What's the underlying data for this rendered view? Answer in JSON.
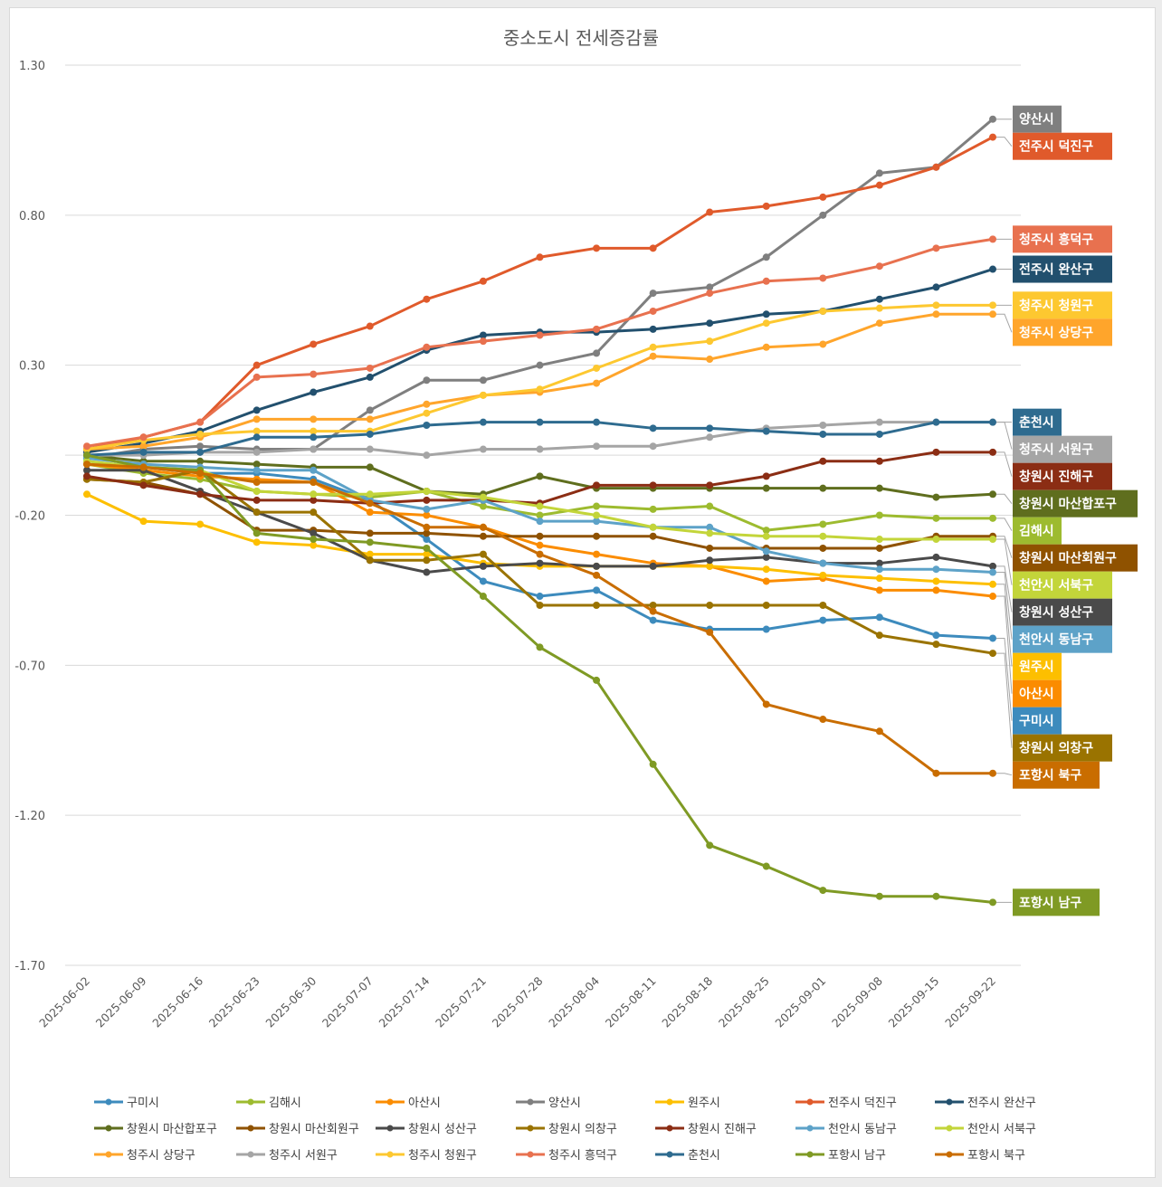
{
  "chart_data": {
    "type": "line",
    "title": "중소도시 전세증감률",
    "xlabel": "",
    "ylabel": "",
    "ylim": [
      -1.7,
      1.3
    ],
    "yticks": [
      "1.30",
      "0.80",
      "0.30",
      "-0.20",
      "-0.70",
      "-1.20",
      "-1.70"
    ],
    "ytick_values": [
      1.3,
      0.8,
      0.3,
      -0.2,
      -0.7,
      -1.2,
      -1.7
    ],
    "grid": true,
    "legend_position": "bottom",
    "categories": [
      "2025-06-02",
      "2025-06-09",
      "2025-06-16",
      "2025-06-23",
      "2025-06-30",
      "2025-07-07",
      "2025-07-14",
      "2025-07-21",
      "2025-07-28",
      "2025-08-04",
      "2025-08-11",
      "2025-08-18",
      "2025-08-25",
      "2025-09-01",
      "2025-09-08",
      "2025-09-15",
      "2025-09-22"
    ],
    "series": [
      {
        "name": "구미시",
        "color": "#3d8bbd",
        "values": [
          0.0,
          -0.04,
          -0.06,
          -0.06,
          -0.08,
          -0.15,
          -0.28,
          -0.42,
          -0.47,
          -0.45,
          -0.55,
          -0.58,
          -0.58,
          -0.55,
          -0.54,
          -0.6,
          -0.61
        ]
      },
      {
        "name": "김해시",
        "color": "#9dbb2f",
        "values": [
          -0.03,
          -0.06,
          -0.08,
          -0.12,
          -0.13,
          -0.14,
          -0.12,
          -0.17,
          -0.2,
          -0.17,
          -0.18,
          -0.17,
          -0.25,
          -0.23,
          -0.2,
          -0.21,
          -0.21
        ]
      },
      {
        "name": "아산시",
        "color": "#fb8c00",
        "values": [
          -0.03,
          -0.05,
          -0.07,
          -0.08,
          -0.09,
          -0.19,
          -0.2,
          -0.24,
          -0.3,
          -0.33,
          -0.36,
          -0.37,
          -0.42,
          -0.41,
          -0.45,
          -0.45,
          -0.47
        ]
      },
      {
        "name": "양산시",
        "color": "#7f7f7f",
        "values": [
          -0.01,
          0.02,
          0.03,
          0.02,
          0.02,
          0.15,
          0.25,
          0.25,
          0.3,
          0.34,
          0.54,
          0.56,
          0.66,
          0.8,
          0.94,
          0.96,
          1.12
        ]
      },
      {
        "name": "원주시",
        "color": "#fdbf00",
        "values": [
          -0.13,
          -0.22,
          -0.23,
          -0.29,
          -0.3,
          -0.33,
          -0.33,
          -0.36,
          -0.37,
          -0.37,
          -0.37,
          -0.37,
          -0.38,
          -0.4,
          -0.41,
          -0.42,
          -0.43
        ]
      },
      {
        "name": "전주시 덕진구",
        "color": "#e05a2b",
        "values": [
          0.02,
          0.06,
          0.11,
          0.3,
          0.37,
          0.43,
          0.52,
          0.58,
          0.66,
          0.69,
          0.69,
          0.81,
          0.83,
          0.86,
          0.9,
          0.96,
          1.06
        ]
      },
      {
        "name": "전주시 완산구",
        "color": "#22506e",
        "values": [
          0.01,
          0.04,
          0.08,
          0.15,
          0.21,
          0.26,
          0.35,
          0.4,
          0.41,
          0.41,
          0.42,
          0.44,
          0.47,
          0.48,
          0.52,
          0.56,
          0.62
        ]
      },
      {
        "name": "창원시 마산합포구",
        "color": "#5f6e1e",
        "values": [
          0.0,
          -0.02,
          -0.02,
          -0.03,
          -0.04,
          -0.04,
          -0.12,
          -0.13,
          -0.07,
          -0.11,
          -0.11,
          -0.11,
          -0.11,
          -0.11,
          -0.11,
          -0.14,
          -0.13
        ]
      },
      {
        "name": "창원시 마산회원구",
        "color": "#8f5200",
        "values": [
          -0.08,
          -0.09,
          -0.13,
          -0.25,
          -0.25,
          -0.26,
          -0.26,
          -0.27,
          -0.27,
          -0.27,
          -0.27,
          -0.31,
          -0.31,
          -0.31,
          -0.31,
          -0.27,
          -0.27
        ]
      },
      {
        "name": "창원시 성산구",
        "color": "#4a4a4a",
        "values": [
          -0.05,
          -0.05,
          -0.12,
          -0.19,
          -0.26,
          -0.35,
          -0.39,
          -0.37,
          -0.36,
          -0.37,
          -0.37,
          -0.35,
          -0.34,
          -0.36,
          -0.36,
          -0.34,
          -0.37
        ]
      },
      {
        "name": "창원시 의창구",
        "color": "#9a7300",
        "values": [
          -0.08,
          -0.09,
          -0.05,
          -0.19,
          -0.19,
          -0.35,
          -0.35,
          -0.33,
          -0.5,
          -0.5,
          -0.5,
          -0.5,
          -0.5,
          -0.5,
          -0.6,
          -0.63,
          -0.66
        ]
      },
      {
        "name": "창원시 진해구",
        "color": "#8b2d14",
        "values": [
          -0.07,
          -0.1,
          -0.13,
          -0.15,
          -0.15,
          -0.16,
          -0.15,
          -0.15,
          -0.16,
          -0.1,
          -0.1,
          -0.1,
          -0.07,
          -0.02,
          -0.02,
          0.01,
          0.01
        ]
      },
      {
        "name": "천안시 동남구",
        "color": "#5da2c8",
        "values": [
          -0.01,
          -0.03,
          -0.04,
          -0.05,
          -0.05,
          -0.15,
          -0.18,
          -0.15,
          -0.22,
          -0.22,
          -0.24,
          -0.24,
          -0.32,
          -0.36,
          -0.38,
          -0.38,
          -0.39
        ]
      },
      {
        "name": "천안시 서북구",
        "color": "#c3d53a",
        "values": [
          -0.02,
          -0.04,
          -0.05,
          -0.12,
          -0.13,
          -0.13,
          -0.12,
          -0.14,
          -0.17,
          -0.2,
          -0.24,
          -0.26,
          -0.27,
          -0.27,
          -0.28,
          -0.28,
          -0.28
        ]
      },
      {
        "name": "청주시 상당구",
        "color": "#ffa52b",
        "values": [
          0.02,
          0.03,
          0.06,
          0.12,
          0.12,
          0.12,
          0.17,
          0.2,
          0.21,
          0.24,
          0.33,
          0.32,
          0.36,
          0.37,
          0.44,
          0.47,
          0.47
        ]
      },
      {
        "name": "청주시 서원구",
        "color": "#a5a5a5",
        "values": [
          0.0,
          0.0,
          0.01,
          0.01,
          0.02,
          0.02,
          0.0,
          0.02,
          0.02,
          0.03,
          0.03,
          0.06,
          0.09,
          0.1,
          0.11,
          0.11,
          0.11
        ]
      },
      {
        "name": "청주시 청원구",
        "color": "#fdc830",
        "values": [
          0.02,
          0.05,
          0.07,
          0.08,
          0.08,
          0.08,
          0.14,
          0.2,
          0.22,
          0.29,
          0.36,
          0.38,
          0.44,
          0.48,
          0.49,
          0.5,
          0.5
        ]
      },
      {
        "name": "청주시 흥덕구",
        "color": "#e8714f",
        "values": [
          0.03,
          0.06,
          0.11,
          0.26,
          0.27,
          0.29,
          0.36,
          0.38,
          0.4,
          0.42,
          0.48,
          0.54,
          0.58,
          0.59,
          0.63,
          0.69,
          0.72
        ]
      },
      {
        "name": "춘천시",
        "color": "#2e6b8f",
        "values": [
          0.0,
          0.01,
          0.01,
          0.06,
          0.06,
          0.07,
          0.1,
          0.11,
          0.11,
          0.11,
          0.09,
          0.09,
          0.08,
          0.07,
          0.07,
          0.11,
          0.11
        ]
      },
      {
        "name": "포항시 남구",
        "color": "#7f9a24",
        "values": [
          0.0,
          -0.04,
          -0.05,
          -0.26,
          -0.28,
          -0.29,
          -0.31,
          -0.47,
          -0.64,
          -0.75,
          -1.03,
          -1.3,
          -1.37,
          -1.45,
          -1.47,
          -1.47,
          -1.49
        ]
      },
      {
        "name": "포항시 북구",
        "color": "#c96d00",
        "values": [
          -0.03,
          -0.04,
          -0.06,
          -0.09,
          -0.09,
          -0.16,
          -0.24,
          -0.24,
          -0.33,
          -0.4,
          -0.52,
          -0.59,
          -0.83,
          -0.88,
          -0.92,
          -1.06,
          -1.06
        ]
      }
    ],
    "end_labels": [
      "양산시",
      "전주시 덕진구",
      "청주시 흥덕구",
      "전주시 완산구",
      "청주시 청원구",
      "청주시 상당구",
      "춘천시",
      "청주시 서원구",
      "창원시 진해구",
      "창원시 마산합포구",
      "김해시",
      "창원시 마산회원구",
      "천안시 서북구",
      "창원시 성산구",
      "천안시 동남구",
      "원주시",
      "아산시",
      "구미시",
      "창원시 의창구",
      "포항시 북구",
      "포항시 남구"
    ]
  }
}
